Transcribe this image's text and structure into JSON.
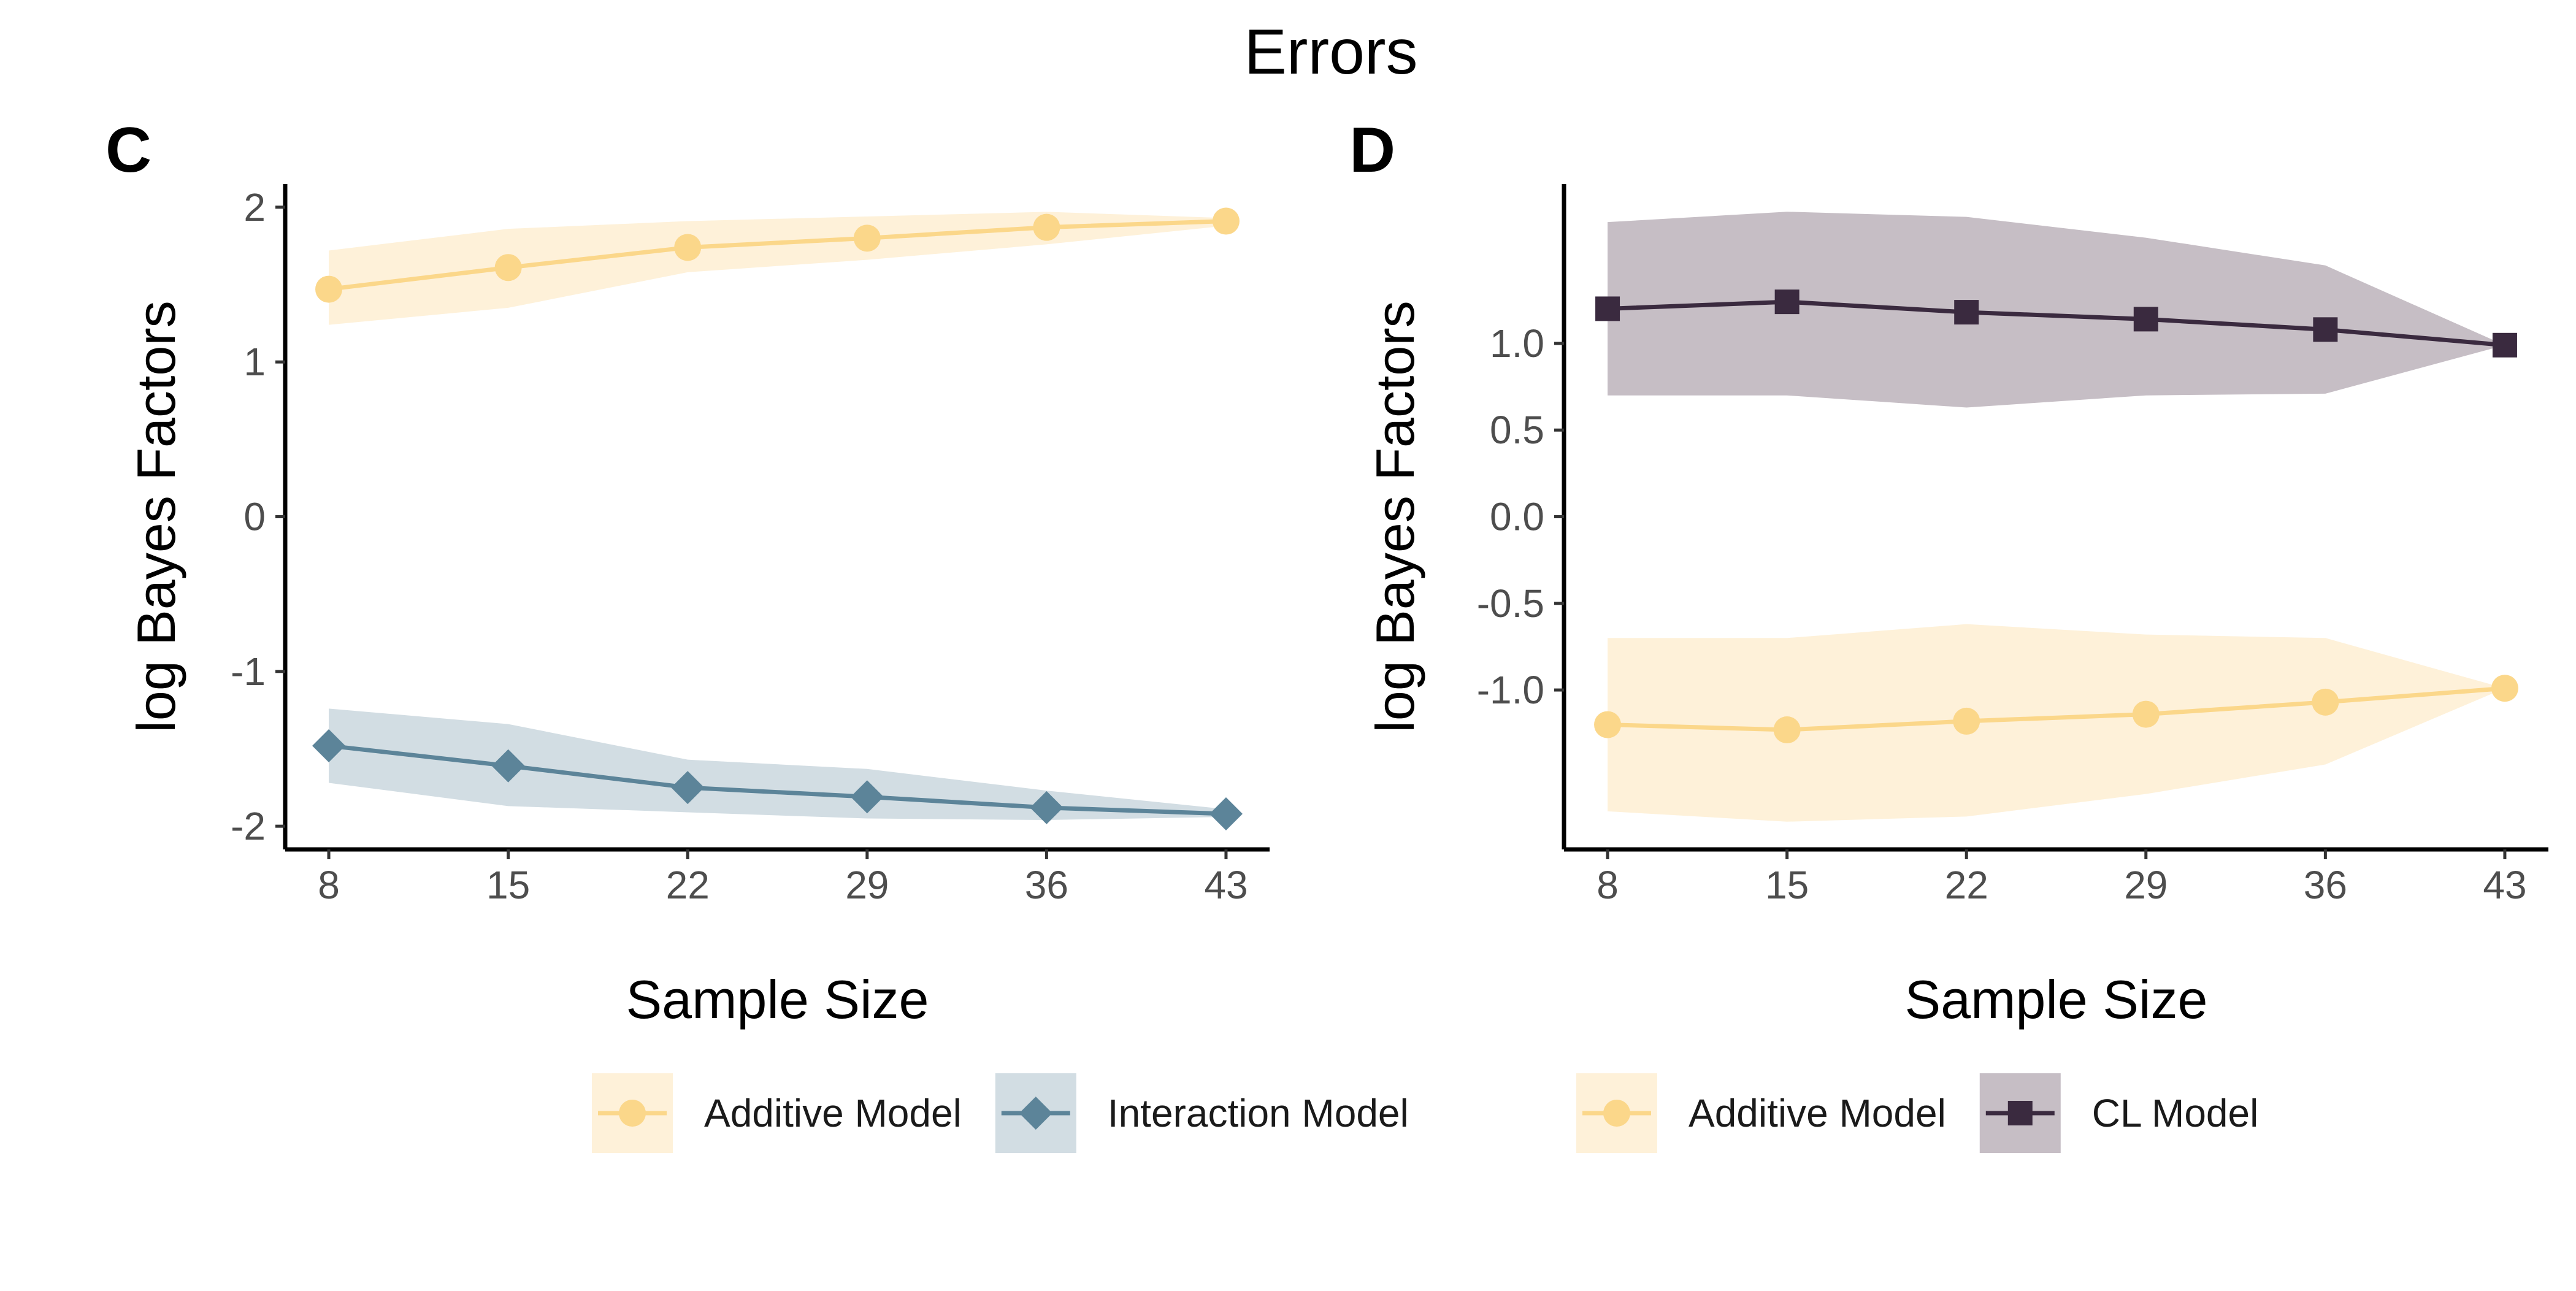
{
  "title": "Errors",
  "chart_data": [
    {
      "panel": "C",
      "type": "line",
      "xlabel": "Sample Size",
      "ylabel": "log Bayes Factors",
      "x": [
        8,
        15,
        22,
        29,
        36,
        43
      ],
      "xlim": [
        6.3,
        44.7
      ],
      "ylim": [
        -2.15,
        2.15
      ],
      "yticks": [
        2,
        1,
        0,
        -1,
        -2
      ],
      "ytick_labels": [
        "2",
        "1",
        "0",
        "-1",
        "-2"
      ],
      "grid": false,
      "series": [
        {
          "name": "Additive Model",
          "marker": "circle",
          "color": "#FBD78A",
          "band_color": "#FEF1D9",
          "values": [
            1.47,
            1.61,
            1.74,
            1.8,
            1.87,
            1.91
          ],
          "lower": [
            1.24,
            1.35,
            1.58,
            1.66,
            1.76,
            1.88
          ],
          "upper": [
            1.72,
            1.86,
            1.91,
            1.94,
            1.97,
            1.93
          ]
        },
        {
          "name": "Interaction Model",
          "marker": "diamond",
          "color": "#5C8499",
          "band_color": "#D2DDE3",
          "values": [
            -1.48,
            -1.61,
            -1.75,
            -1.81,
            -1.88,
            -1.92
          ],
          "lower": [
            -1.72,
            -1.87,
            -1.91,
            -1.95,
            -1.96,
            -1.94
          ],
          "upper": [
            -1.24,
            -1.34,
            -1.57,
            -1.63,
            -1.77,
            -1.89
          ]
        }
      ]
    },
    {
      "panel": "D",
      "type": "line",
      "xlabel": "Sample Size",
      "ylabel": "log Bayes Factors",
      "x": [
        8,
        15,
        22,
        29,
        36,
        43
      ],
      "xlim": [
        6.3,
        44.7
      ],
      "ylim": [
        -1.92,
        1.92
      ],
      "yticks": [
        1.0,
        0.5,
        0.0,
        -0.5,
        -1.0
      ],
      "ytick_labels": [
        "1.0",
        "0.5",
        "0.0",
        "-0.5",
        "-1.0"
      ],
      "grid": false,
      "series": [
        {
          "name": "Additive Model",
          "marker": "circle",
          "color": "#FBD78A",
          "band_color": "#FEF1D9",
          "values": [
            -1.2,
            -1.23,
            -1.18,
            -1.14,
            -1.07,
            -0.99
          ],
          "lower": [
            -1.7,
            -1.76,
            -1.73,
            -1.6,
            -1.43,
            -0.99
          ],
          "upper": [
            -0.7,
            -0.7,
            -0.62,
            -0.68,
            -0.7,
            -0.99
          ]
        },
        {
          "name": "CL Model",
          "marker": "square",
          "color": "#3A2A3F",
          "band_color": "#C6BEC5",
          "values": [
            1.2,
            1.24,
            1.18,
            1.14,
            1.08,
            0.99
          ],
          "lower": [
            0.7,
            0.7,
            0.63,
            0.7,
            0.71,
            0.99
          ],
          "upper": [
            1.7,
            1.76,
            1.73,
            1.61,
            1.45,
            0.99
          ]
        }
      ]
    }
  ]
}
